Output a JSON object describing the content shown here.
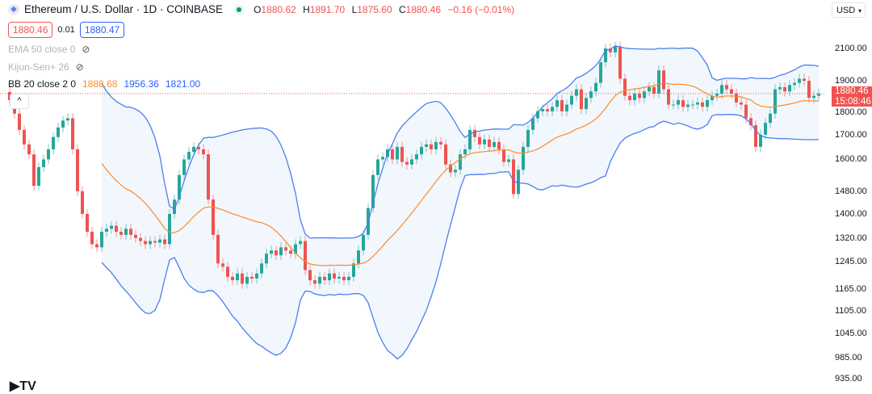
{
  "header": {
    "symbol_title": "Ethereum / U.S. Dollar · 1D · COINBASE",
    "open_label": "O",
    "open": "1880.62",
    "high_label": "H",
    "high": "1891.70",
    "low_label": "L",
    "low": "1875.60",
    "close_label": "C",
    "close": "1880.46",
    "change": "−0.16 (−0.01%)"
  },
  "trade": {
    "sell_price": "1880.46",
    "spread": "0.01",
    "buy_price": "1880.47"
  },
  "indicators": [
    {
      "label": "EMA 50 close 0",
      "hidden": true
    },
    {
      "label": "Kijun-Sen+ 26",
      "hidden": true
    },
    {
      "label": "BB 20 close 2 0",
      "basis": "1888.68",
      "upper": "1956.36",
      "lower": "1821.00"
    }
  ],
  "collapse_glyph": "^",
  "currency": "USD",
  "last_price": {
    "price": "1880.46",
    "countdown": "15:08:46"
  },
  "logo_text": "TradingView",
  "colors": {
    "up": "#26a69a",
    "down": "#ef5350",
    "bb_basis": "#ff8a26",
    "bb_bands": "#4a7ef0",
    "bb_fill": "#eef5fd",
    "last_price": "#ef5350"
  },
  "chart_data": {
    "type": "candlestick",
    "interval": "1D",
    "y_scale": "log",
    "ylim": [
      935,
      2100
    ],
    "grid": false,
    "y_ticks": [
      "2100.00",
      "1900.00",
      "1800.00",
      "1700.00",
      "1600.00",
      "1480.00",
      "1400.00",
      "1320.00",
      "1245.00",
      "1165.00",
      "1105.00",
      "1045.00",
      "985.00",
      "935.00"
    ],
    "closes": [
      1850,
      1790,
      1720,
      1660,
      1620,
      1500,
      1570,
      1600,
      1640,
      1690,
      1730,
      1760,
      1770,
      1640,
      1480,
      1400,
      1340,
      1300,
      1290,
      1340,
      1350,
      1360,
      1340,
      1330,
      1350,
      1330,
      1320,
      1310,
      1300,
      1310,
      1305,
      1315,
      1300,
      1400,
      1450,
      1540,
      1600,
      1630,
      1650,
      1640,
      1620,
      1450,
      1330,
      1240,
      1230,
      1200,
      1190,
      1210,
      1180,
      1200,
      1195,
      1210,
      1240,
      1270,
      1280,
      1265,
      1290,
      1280,
      1270,
      1300,
      1310,
      1220,
      1190,
      1180,
      1200,
      1190,
      1210,
      1195,
      1200,
      1190,
      1200,
      1240,
      1280,
      1330,
      1420,
      1540,
      1600,
      1610,
      1640,
      1600,
      1650,
      1590,
      1580,
      1600,
      1620,
      1650,
      1660,
      1640,
      1670,
      1660,
      1580,
      1550,
      1560,
      1620,
      1640,
      1720,
      1690,
      1660,
      1680,
      1650,
      1670,
      1640,
      1590,
      1600,
      1470,
      1560,
      1650,
      1720,
      1770,
      1800,
      1810,
      1800,
      1820,
      1850,
      1800,
      1830,
      1870,
      1900,
      1810,
      1860,
      1890,
      1930,
      2030,
      2100,
      2080,
      2110,
      1950,
      1870,
      1850,
      1880,
      1860,
      1890,
      1910,
      1880,
      1990,
      1900,
      1830,
      1830,
      1850,
      1820,
      1830,
      1830,
      1840,
      1820,
      1850,
      1870,
      1880,
      1920,
      1900,
      1880,
      1840,
      1830,
      1770,
      1740,
      1650,
      1700,
      1750,
      1790,
      1900,
      1910,
      1890,
      1920,
      1930,
      1950,
      1940,
      1860,
      1870,
      1880.46
    ],
    "bollinger": {
      "length": 20,
      "stddev": 2,
      "basis": 1888.68,
      "upper": 1956.36,
      "lower": 1821.0
    }
  }
}
